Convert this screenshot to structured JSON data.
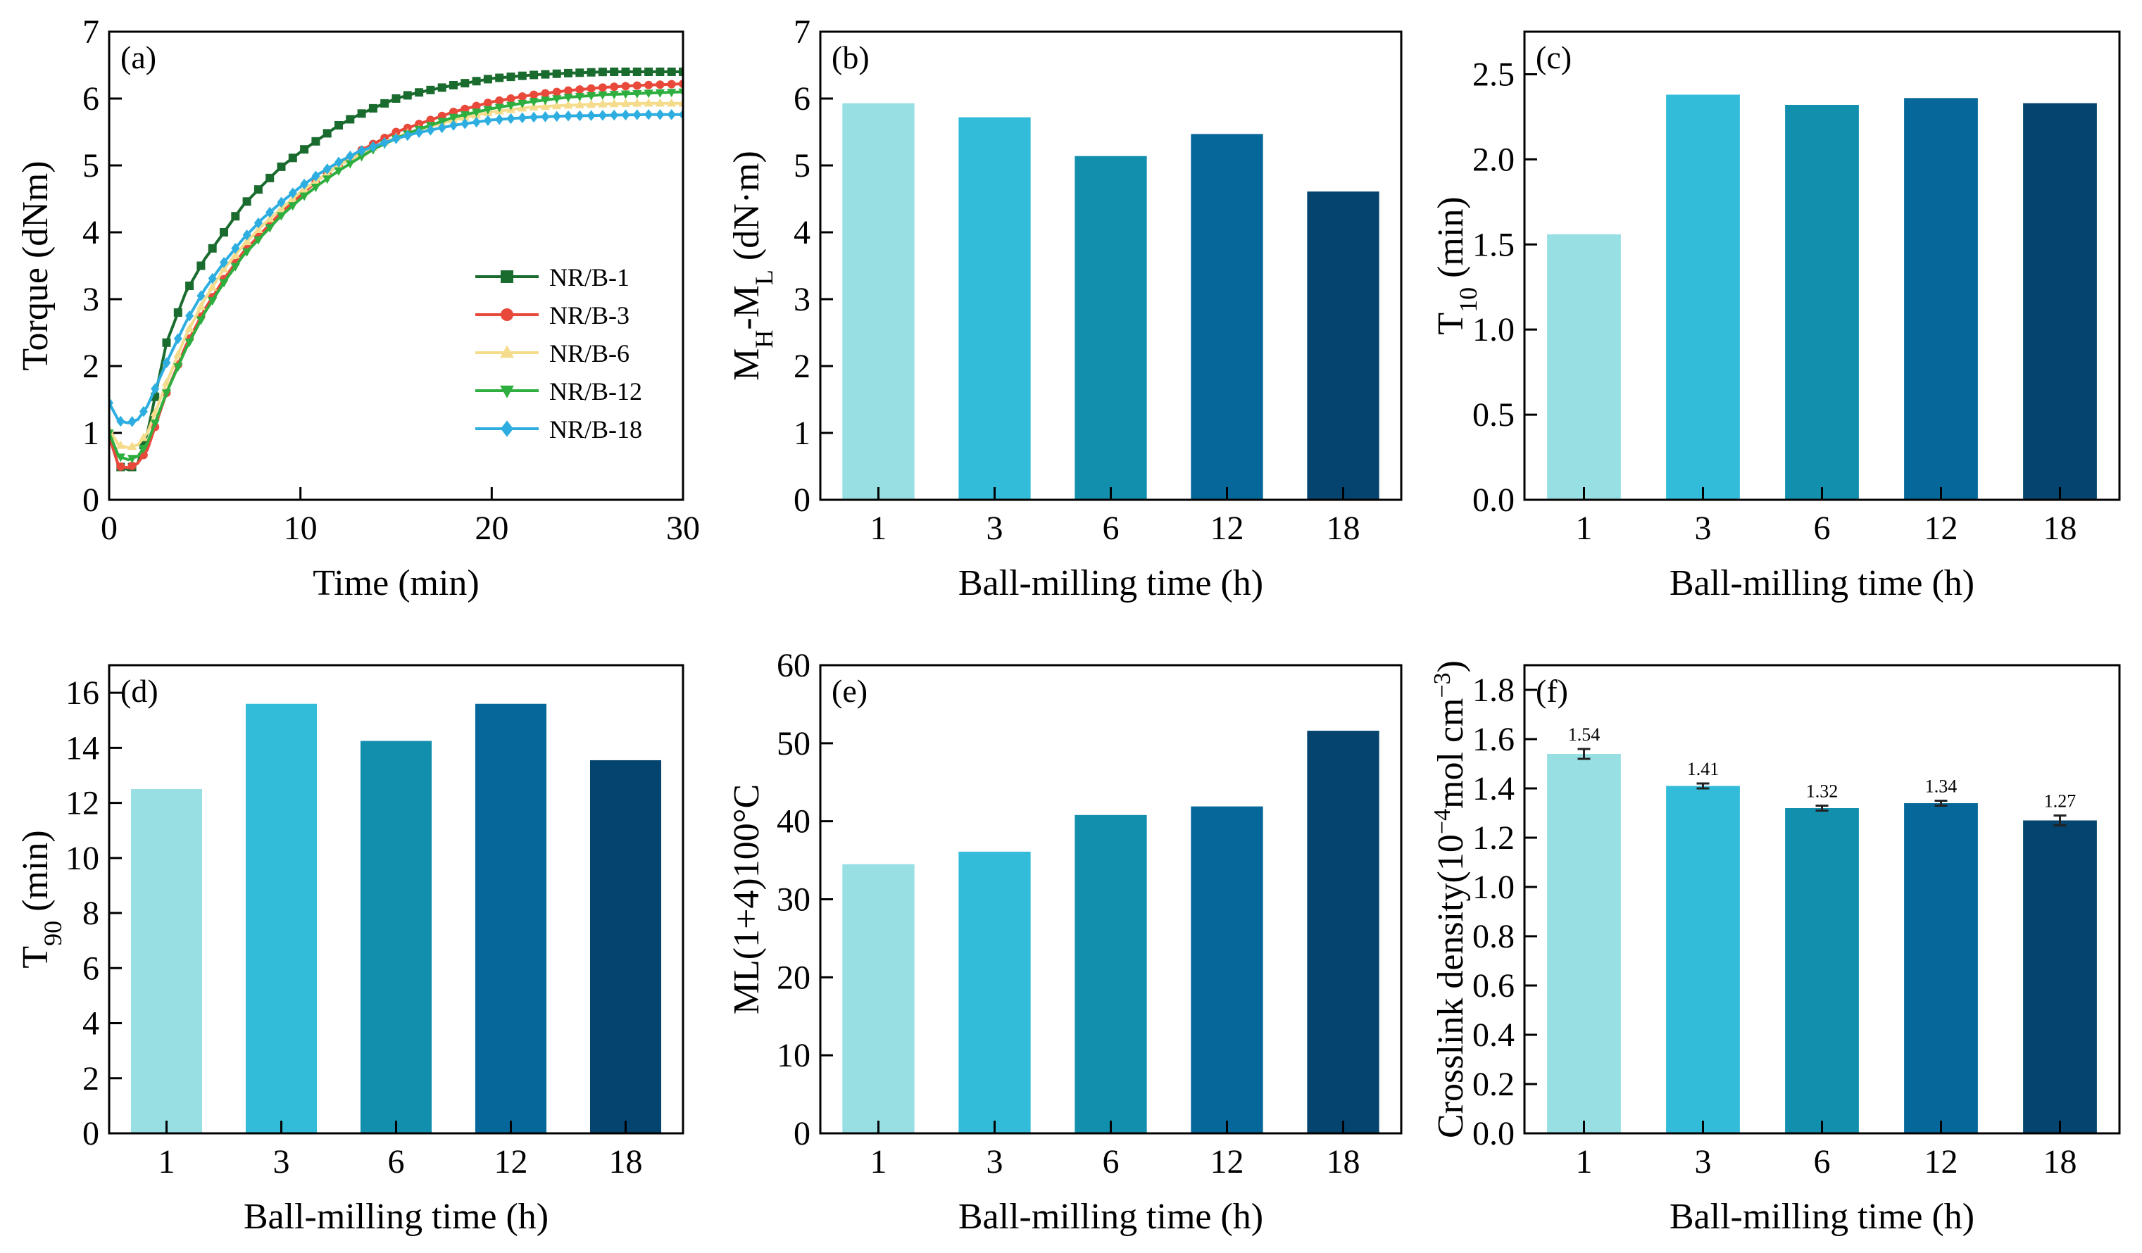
{
  "chart_data": [
    {
      "id": "a",
      "type": "line",
      "panel_label": "(a)",
      "xlabel": "Time (min)",
      "ylabel": "Torque (dNm)",
      "xlim": [
        0,
        30
      ],
      "ylim": [
        0,
        7
      ],
      "xticks": [
        0,
        10,
        20,
        30
      ],
      "yticks": [
        0,
        1,
        2,
        3,
        4,
        5,
        6,
        7
      ],
      "legend_position": "lower-right",
      "series": [
        {
          "name": "NR/B-1",
          "color": "#1a6b2e",
          "marker": "square",
          "x": [
            0,
            0.5,
            1,
            1.5,
            2,
            3,
            4,
            5,
            6,
            7,
            8,
            9,
            10,
            11,
            12,
            13,
            14,
            15,
            16,
            18,
            20,
            22,
            24,
            26,
            28,
            30
          ],
          "y": [
            0.95,
            0.5,
            0.45,
            0.55,
            1.0,
            2.35,
            3.1,
            3.6,
            4.0,
            4.4,
            4.7,
            4.98,
            5.2,
            5.4,
            5.6,
            5.75,
            5.88,
            6.0,
            6.08,
            6.2,
            6.3,
            6.35,
            6.38,
            6.4,
            6.4,
            6.4
          ]
        },
        {
          "name": "NR/B-3",
          "color": "#e8493b",
          "marker": "circle",
          "x": [
            0,
            0.5,
            1,
            1.5,
            2,
            3,
            4,
            5,
            6,
            7,
            8,
            9,
            10,
            11,
            12,
            13,
            14,
            15,
            16,
            18,
            20,
            22,
            24,
            26,
            28,
            30
          ],
          "y": [
            0.95,
            0.5,
            0.48,
            0.55,
            0.75,
            1.6,
            2.3,
            2.85,
            3.3,
            3.7,
            4.0,
            4.3,
            4.55,
            4.8,
            5.0,
            5.2,
            5.35,
            5.5,
            5.6,
            5.8,
            5.95,
            6.05,
            6.12,
            6.17,
            6.2,
            6.22
          ]
        },
        {
          "name": "NR/B-6",
          "color": "#f5dc8c",
          "marker": "triangle",
          "x": [
            0,
            0.5,
            1,
            1.5,
            2,
            3,
            4,
            5,
            6,
            7,
            8,
            9,
            10,
            11,
            12,
            13,
            14,
            15,
            16,
            18,
            20,
            22,
            24,
            26,
            28,
            30
          ],
          "y": [
            1.05,
            0.82,
            0.78,
            0.82,
            1.0,
            1.75,
            2.45,
            3.0,
            3.45,
            3.8,
            4.1,
            4.35,
            4.6,
            4.8,
            5.0,
            5.15,
            5.3,
            5.42,
            5.52,
            5.68,
            5.8,
            5.87,
            5.9,
            5.92,
            5.93,
            5.93
          ]
        },
        {
          "name": "NR/B-12",
          "color": "#2dae3e",
          "marker": "triangle-down",
          "x": [
            0,
            0.5,
            1,
            1.5,
            2,
            3,
            4,
            5,
            6,
            7,
            8,
            9,
            10,
            11,
            12,
            13,
            14,
            15,
            16,
            18,
            20,
            22,
            24,
            26,
            28,
            30
          ],
          "y": [
            1.0,
            0.65,
            0.6,
            0.65,
            0.85,
            1.6,
            2.25,
            2.8,
            3.25,
            3.65,
            3.95,
            4.25,
            4.5,
            4.72,
            4.92,
            5.1,
            5.27,
            5.4,
            5.52,
            5.72,
            5.85,
            5.95,
            6.02,
            6.06,
            6.08,
            6.1
          ]
        },
        {
          "name": "NR/B-18",
          "color": "#2eaee0",
          "marker": "diamond",
          "x": [
            0,
            0.5,
            1,
            1.5,
            2,
            3,
            4,
            5,
            6,
            7,
            8,
            9,
            10,
            11,
            12,
            13,
            14,
            15,
            16,
            18,
            20,
            22,
            24,
            26,
            28,
            30
          ],
          "y": [
            1.45,
            1.18,
            1.15,
            1.2,
            1.4,
            2.05,
            2.65,
            3.15,
            3.55,
            3.9,
            4.2,
            4.45,
            4.68,
            4.88,
            5.05,
            5.2,
            5.3,
            5.4,
            5.48,
            5.6,
            5.68,
            5.72,
            5.74,
            5.75,
            5.76,
            5.76
          ]
        }
      ]
    },
    {
      "id": "b",
      "type": "bar",
      "panel_label": "(b)",
      "xlabel": "Ball-milling time (h)",
      "ylabel_main": "M",
      "ylabel_sub1": "H",
      "ylabel_mid": "-M",
      "ylabel_sub2": "L",
      "ylabel_tail": " (dN·m)",
      "categories": [
        "1",
        "3",
        "6",
        "12",
        "18"
      ],
      "values": [
        5.93,
        5.72,
        5.14,
        5.47,
        4.61
      ],
      "ylim": [
        0,
        7
      ],
      "yticks": [
        0,
        1,
        2,
        3,
        4,
        5,
        6,
        7
      ],
      "yticks_fixed": 0
    },
    {
      "id": "c",
      "type": "bar",
      "panel_label": "(c)",
      "xlabel": "Ball-milling time (h)",
      "ylabel_main": "T",
      "ylabel_sub1": "10",
      "ylabel_tail": " (min)",
      "categories": [
        "1",
        "3",
        "6",
        "12",
        "18"
      ],
      "values": [
        1.56,
        2.38,
        2.32,
        2.36,
        2.33
      ],
      "ylim": [
        0,
        2.75
      ],
      "yticks": [
        0,
        0.5,
        1.0,
        1.5,
        2.0,
        2.5
      ],
      "yticks_fixed": 1
    },
    {
      "id": "d",
      "type": "bar",
      "panel_label": "(d)",
      "xlabel": "Ball-milling time (h)",
      "ylabel_main": "T",
      "ylabel_sub1": "90",
      "ylabel_tail": " (min)",
      "categories": [
        "1",
        "3",
        "6",
        "12",
        "18"
      ],
      "values": [
        12.5,
        15.6,
        14.25,
        15.6,
        13.55
      ],
      "ylim": [
        0,
        17
      ],
      "yticks": [
        0,
        2,
        4,
        6,
        8,
        10,
        12,
        14,
        16
      ],
      "yticks_fixed": 0
    },
    {
      "id": "e",
      "type": "bar",
      "panel_label": "(e)",
      "xlabel": "Ball-milling time (h)",
      "ylabel_main": "ML(1+4)100°C",
      "categories": [
        "1",
        "3",
        "6",
        "12",
        "18"
      ],
      "values": [
        34.5,
        36.1,
        40.8,
        41.9,
        51.6
      ],
      "ylim": [
        0,
        60
      ],
      "yticks": [
        0,
        10,
        20,
        30,
        40,
        50,
        60
      ],
      "yticks_fixed": 0
    },
    {
      "id": "f",
      "type": "bar",
      "panel_label": "(f)",
      "xlabel": "Ball-milling time (h)",
      "ylabel_main": "Crosslink density(10",
      "ylabel_sup": "−4",
      "ylabel_mid": "mol cm",
      "ylabel_sup2": "−3",
      "ylabel_tail": ")",
      "categories": [
        "1",
        "3",
        "6",
        "12",
        "18"
      ],
      "values": [
        1.54,
        1.41,
        1.32,
        1.34,
        1.27
      ],
      "errors": [
        0.02,
        0.01,
        0.01,
        0.01,
        0.02
      ],
      "data_labels": [
        "1.54",
        "1.41",
        "1.32",
        "1.34",
        "1.27"
      ],
      "ylim": [
        0,
        1.9
      ],
      "yticks": [
        0,
        0.2,
        0.4,
        0.6,
        0.8,
        1.0,
        1.2,
        1.4,
        1.6,
        1.8
      ],
      "yticks_fixed": 1
    }
  ],
  "bar_colors": [
    "#97dfe3",
    "#32bcd9",
    "#138fae",
    "#05679a",
    "#04446e"
  ]
}
